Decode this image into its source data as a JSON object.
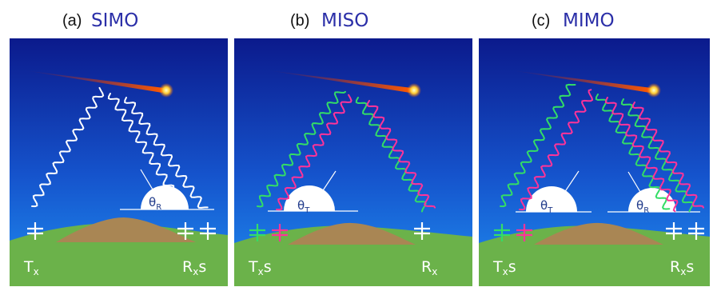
{
  "panels": [
    {
      "id": "a",
      "letter": "(a)",
      "name": "SIMO",
      "angle_main": "θ",
      "angle_sub": "R",
      "tx_main": "T",
      "tx_sub": "x",
      "tx_suffix": "",
      "rx_main": "R",
      "rx_sub": "x",
      "rx_suffix": "s"
    },
    {
      "id": "b",
      "letter": "(b)",
      "name": "MISO",
      "angle_main": "θ",
      "angle_sub": "T",
      "tx_main": "T",
      "tx_sub": "x",
      "tx_suffix": "s",
      "rx_main": "R",
      "rx_sub": "x",
      "rx_suffix": ""
    },
    {
      "id": "c",
      "letter": "(c)",
      "name": "MIMO",
      "angle_main": "θ",
      "angle_sub": "T",
      "angle2_main": "θ",
      "angle2_sub": "R",
      "tx_main": "T",
      "tx_sub": "x",
      "tx_suffix": "s",
      "rx_main": "R",
      "rx_sub": "x",
      "rx_suffix": "s"
    }
  ],
  "colors": {
    "title_blue": "#2b2fa8",
    "sky_top": "#0b1a8c",
    "sky_bottom": "#1f8df0",
    "ground": "#6bb24a",
    "hill": "#a98654",
    "wave_white": "#ffffff",
    "wave_green": "#33dd66",
    "wave_pink": "#ff3399",
    "antenna_green": "#33dd66",
    "antenna_pink": "#ff3399",
    "meteor_head": "#ffcc33",
    "meteor_tail": "#cc2200"
  }
}
